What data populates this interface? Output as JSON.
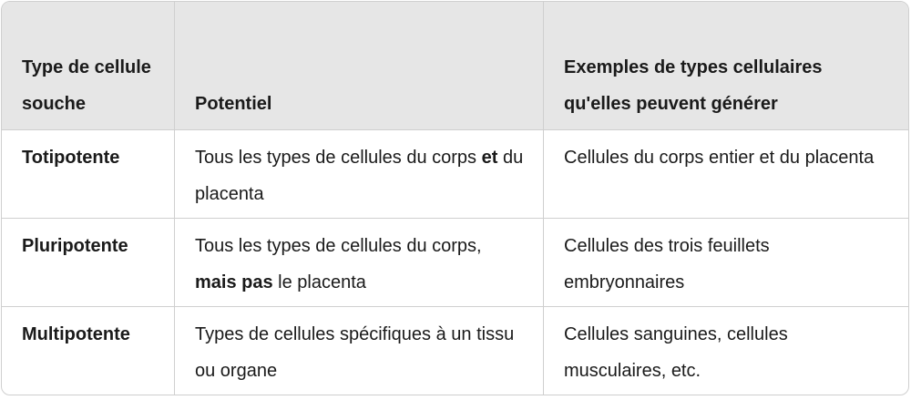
{
  "headers": [
    "Type de cellule souche",
    "Potentiel",
    "Exemples de types cellulaires qu'elles peuvent générer"
  ],
  "rows": [
    {
      "type": "Totipotente",
      "potentiel": {
        "before": "Tous les types de cellules du corps ",
        "bold": "et",
        "after": " du placenta"
      },
      "exemples": "Cellules du corps entier et du placenta"
    },
    {
      "type": "Pluripotente",
      "potentiel": {
        "before": "Tous les types de cellules du corps, ",
        "bold": "mais pas",
        "after": " le placenta"
      },
      "exemples": "Cellules des trois feuillets embryonnaires"
    },
    {
      "type": "Multipotente",
      "potentiel": {
        "before": "Types de cellules spécifiques à un tissu ou organe",
        "bold": "",
        "after": ""
      },
      "exemples": "Cellules sanguines, cellules musculaires, etc."
    }
  ]
}
